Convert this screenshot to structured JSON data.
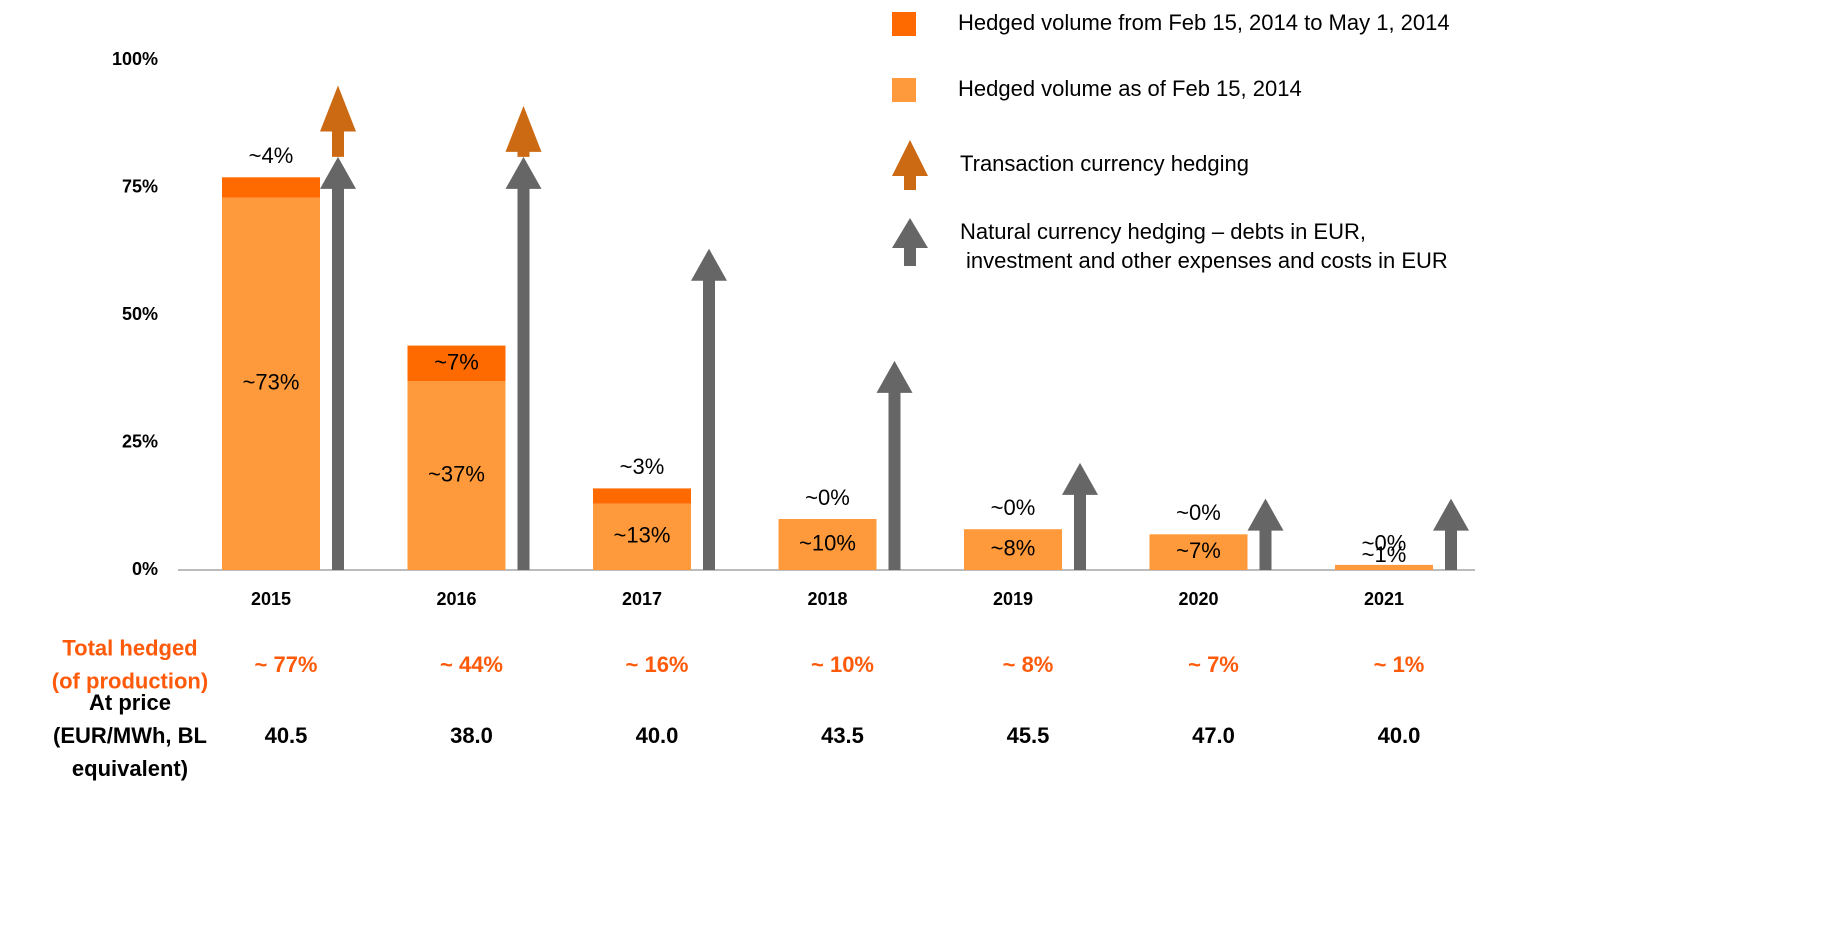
{
  "chart_data": {
    "type": "bar",
    "categories": [
      "2015",
      "2016",
      "2017",
      "2018",
      "2019",
      "2020",
      "2021"
    ],
    "series": [
      {
        "name": "Hedged volume as of Feb 15, 2014",
        "color": "#FF9A3C",
        "kind": "bar",
        "values": [
          73,
          37,
          13,
          10,
          8,
          7,
          1
        ],
        "value_labels": [
          "~73%",
          "~37%",
          "~13%",
          "~10%",
          "~8%",
          "~7%",
          "~1%"
        ]
      },
      {
        "name": "Hedged volume from Feb 15, 2014 to May 1, 2014",
        "color": "#FF6A00",
        "kind": "bar",
        "values": [
          4,
          7,
          3,
          0,
          0,
          0,
          0
        ],
        "value_labels": [
          "~4%",
          "~7%",
          "~3%",
          "~0%",
          "~0%",
          "~0%",
          "~0%"
        ]
      },
      {
        "name": [
          "Natural currency hedging – debts in EUR,",
          "investment and other expenses and costs in EUR"
        ],
        "color": "#666666",
        "kind": "arrow",
        "values": [
          81,
          81,
          63,
          41,
          21,
          14,
          14
        ]
      },
      {
        "name": "Transaction currency hedging",
        "color": "#CC6A14",
        "kind": "arrow",
        "values": [
          14,
          10,
          null,
          null,
          null,
          null,
          null
        ]
      }
    ],
    "ylim": [
      0,
      100
    ],
    "yticks": [
      {
        "value": 0,
        "label": "0%"
      },
      {
        "value": 25,
        "label": "25%"
      },
      {
        "value": 50,
        "label": "50%"
      },
      {
        "value": 75,
        "label": "75%"
      },
      {
        "value": 100,
        "label": "100%"
      }
    ],
    "grid": false,
    "table": [
      {
        "label": [
          "Total hedged",
          "(of production)"
        ],
        "color": "#FF5A0A",
        "values": [
          "~ 77%",
          "~ 44%",
          "~ 16%",
          "~ 10%",
          "~ 8%",
          "~ 7%",
          "~ 1%"
        ]
      },
      {
        "label": [
          "At price",
          "(EUR/MWh, BL",
          "equivalent)"
        ],
        "color": "#000000",
        "values": [
          "40.5",
          "38.0",
          "40.0",
          "43.5",
          "45.5",
          "47.0",
          "40.0"
        ]
      }
    ]
  }
}
